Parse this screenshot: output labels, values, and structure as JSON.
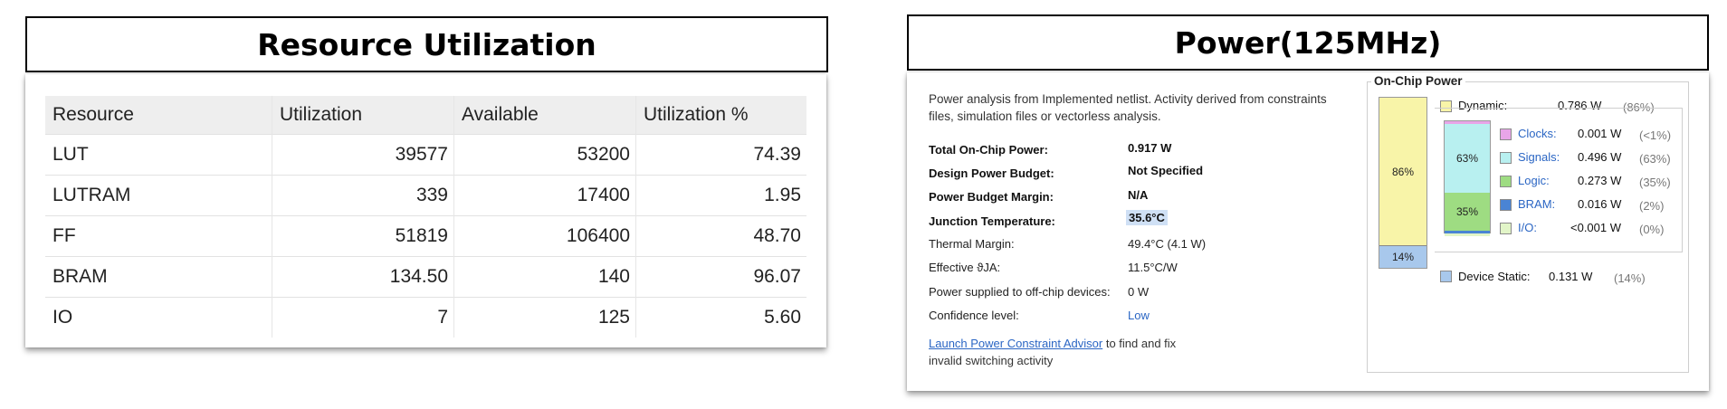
{
  "resource": {
    "title": "Resource Utilization",
    "columns": [
      "Resource",
      "Utilization",
      "Available",
      "Utilization %"
    ],
    "rows": [
      [
        "LUT",
        "39577",
        "53200",
        "74.39"
      ],
      [
        "LUTRAM",
        "339",
        "17400",
        "1.95"
      ],
      [
        "FF",
        "51819",
        "106400",
        "48.70"
      ],
      [
        "BRAM",
        "134.50",
        "140",
        "96.07"
      ],
      [
        "IO",
        "7",
        "125",
        "5.60"
      ]
    ]
  },
  "power": {
    "title": "Power(125MHz)",
    "intro_line1": "Power analysis from Implemented netlist. Activity derived from constraints",
    "intro_line2": "files, simulation files or vectorless analysis.",
    "summary": [
      {
        "label": "Total On-Chip Power:",
        "value": "0.917 W"
      },
      {
        "label": "Design Power Budget:",
        "value": "Not Specified"
      },
      {
        "label": "Power Budget Margin:",
        "value": "N/A"
      },
      {
        "label": "Junction Temperature:",
        "value": "35.6°C"
      },
      {
        "label": "Thermal Margin:",
        "value": "49.4°C (4.1 W)"
      },
      {
        "label": "Effective ϑJA:",
        "value": "11.5°C/W"
      },
      {
        "label": "Power supplied to off-chip devices:",
        "value": "0 W"
      },
      {
        "label": "Confidence level:",
        "value": "Low"
      }
    ],
    "advisor_link": "Launch Power Constraint Advisor",
    "advisor_rest": " to find and fix",
    "advisor_line2": "invalid switching activity",
    "chip": {
      "title": "On-Chip Power",
      "dynamic": {
        "label": "Dynamic:",
        "value": "0.786 W",
        "pct": "(86%)",
        "bar_label": "86%",
        "fraction": 0.86
      },
      "static": {
        "label": "Device Static:",
        "value": "0.131 W",
        "pct": "(14%)",
        "bar_label": "14%",
        "fraction": 0.14
      },
      "inner_labels": {
        "signals": "63%",
        "logic": "35%"
      },
      "items": [
        {
          "label": "Clocks:",
          "value": "0.001 W",
          "pct": "(<1%)",
          "color": "#e8a5e8",
          "fraction": 0.01
        },
        {
          "label": "Signals:",
          "value": "0.496 W",
          "pct": "(63%)",
          "color": "#b8f0f0",
          "fraction": 0.63
        },
        {
          "label": "Logic:",
          "value": "0.273 W",
          "pct": "(35%)",
          "color": "#9edc82",
          "fraction": 0.35
        },
        {
          "label": "BRAM:",
          "value": "0.016 W",
          "pct": "(2%)",
          "color": "#4a84d4",
          "fraction": 0.02
        },
        {
          "label": "I/O:",
          "value": "<0.001 W",
          "pct": "(0%)",
          "color": "#e2f5c8",
          "fraction": 0.005
        }
      ],
      "colors": {
        "dynamic": "#f8f4a8",
        "static": "#a8c8ec"
      }
    }
  }
}
